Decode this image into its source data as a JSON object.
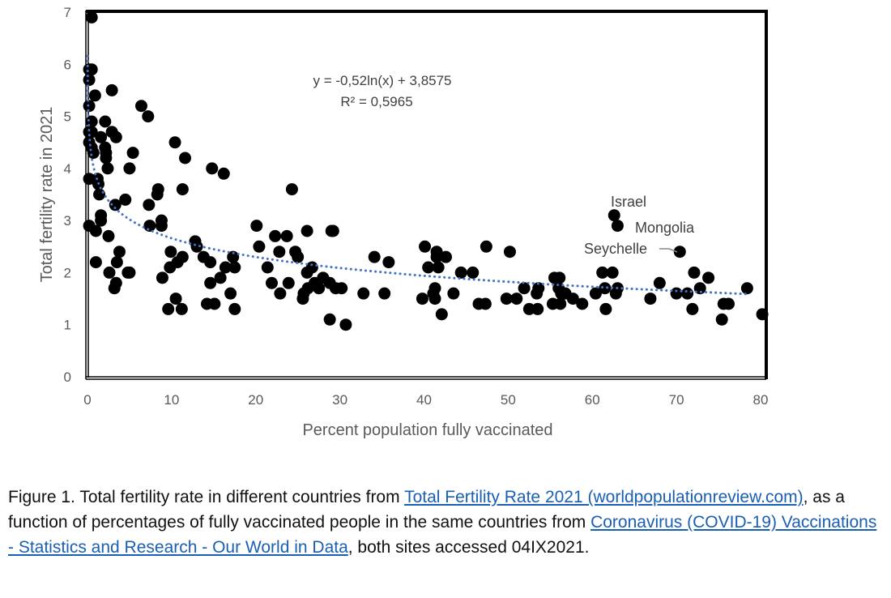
{
  "chart_data": {
    "type": "scatter",
    "title": "",
    "xlabel": "Percent population fully vaccinated",
    "ylabel": "Total fertility rate in 2021",
    "xlim": [
      0,
      80
    ],
    "ylim": [
      0,
      7
    ],
    "xticks": [
      0,
      10,
      20,
      30,
      40,
      50,
      60,
      70,
      80
    ],
    "yticks": [
      0,
      1,
      2,
      3,
      4,
      5,
      6,
      7
    ],
    "grid": false,
    "trendline": {
      "type": "logarithmic",
      "a": -0.52,
      "b": 3.8575,
      "equation": "y = -0,52ln(x) + 3,8575",
      "r2": "R² = 0,5965",
      "color": "#4472c4"
    },
    "marker_color": "#000000",
    "annotations": [
      {
        "label": "Israel",
        "x": 62.6,
        "y": 3.1
      },
      {
        "label": "Mongolia",
        "x": 63.0,
        "y": 2.9
      },
      {
        "label": "Seychelle",
        "x": 70.4,
        "y": 2.4
      }
    ],
    "points": [
      [
        0.5,
        6.9
      ],
      [
        0.2,
        5.9
      ],
      [
        0.5,
        5.9
      ],
      [
        0.2,
        5.7
      ],
      [
        2.9,
        5.5
      ],
      [
        0.9,
        5.4
      ],
      [
        0.2,
        5.2
      ],
      [
        6.4,
        5.2
      ],
      [
        7.2,
        5.0
      ],
      [
        0.5,
        4.9
      ],
      [
        2.1,
        4.9
      ],
      [
        0.2,
        4.7
      ],
      [
        0.5,
        4.7
      ],
      [
        2.9,
        4.7
      ],
      [
        3.4,
        4.6
      ],
      [
        1.6,
        4.6
      ],
      [
        0.2,
        4.5
      ],
      [
        0.5,
        4.4
      ],
      [
        2.1,
        4.4
      ],
      [
        2.2,
        4.3
      ],
      [
        0.7,
        4.3
      ],
      [
        2.2,
        4.2
      ],
      [
        5.4,
        4.3
      ],
      [
        5.0,
        4.0
      ],
      [
        2.4,
        4.0
      ],
      [
        10.4,
        4.5
      ],
      [
        11.6,
        4.2
      ],
      [
        14.8,
        4.0
      ],
      [
        16.2,
        3.9
      ],
      [
        0.2,
        3.8
      ],
      [
        1.2,
        3.8
      ],
      [
        1.3,
        3.7
      ],
      [
        1.4,
        3.5
      ],
      [
        8.4,
        3.6
      ],
      [
        11.3,
        3.6
      ],
      [
        8.3,
        3.5
      ],
      [
        24.3,
        3.6
      ],
      [
        4.5,
        3.4
      ],
      [
        7.3,
        3.3
      ],
      [
        3.3,
        3.3
      ],
      [
        1.6,
        3.1
      ],
      [
        1.6,
        3.0
      ],
      [
        0.2,
        2.9
      ],
      [
        1.0,
        2.8
      ],
      [
        2.5,
        2.7
      ],
      [
        7.4,
        2.9
      ],
      [
        8.8,
        3.0
      ],
      [
        8.8,
        2.9
      ],
      [
        20.1,
        2.9
      ],
      [
        29.0,
        2.8
      ],
      [
        29.2,
        2.8
      ],
      [
        26.1,
        2.8
      ],
      [
        3.8,
        2.4
      ],
      [
        3.5,
        2.2
      ],
      [
        1.0,
        2.2
      ],
      [
        2.6,
        2.0
      ],
      [
        3.4,
        1.8
      ],
      [
        3.2,
        1.7
      ],
      [
        4.8,
        2.0
      ],
      [
        5.0,
        2.0
      ],
      [
        12.8,
        2.6
      ],
      [
        13.0,
        2.5
      ],
      [
        9.9,
        2.4
      ],
      [
        11.3,
        2.3
      ],
      [
        10.7,
        2.2
      ],
      [
        13.8,
        2.3
      ],
      [
        14.6,
        2.2
      ],
      [
        16.4,
        2.1
      ],
      [
        9.8,
        2.1
      ],
      [
        8.9,
        1.9
      ],
      [
        14.6,
        1.8
      ],
      [
        15.8,
        1.9
      ],
      [
        17.0,
        1.6
      ],
      [
        17.5,
        2.1
      ],
      [
        17.3,
        2.3
      ],
      [
        9.6,
        1.3
      ],
      [
        10.5,
        1.5
      ],
      [
        11.2,
        1.3
      ],
      [
        14.2,
        1.4
      ],
      [
        15.1,
        1.4
      ],
      [
        17.5,
        1.3
      ],
      [
        20.4,
        2.5
      ],
      [
        22.3,
        2.7
      ],
      [
        23.7,
        2.7
      ],
      [
        22.8,
        2.4
      ],
      [
        24.7,
        2.4
      ],
      [
        25.0,
        2.3
      ],
      [
        21.4,
        2.1
      ],
      [
        21.9,
        1.8
      ],
      [
        22.9,
        1.6
      ],
      [
        23.9,
        1.8
      ],
      [
        26.7,
        2.1
      ],
      [
        26.1,
        2.0
      ],
      [
        28.0,
        1.9
      ],
      [
        27.0,
        1.8
      ],
      [
        28.8,
        1.8
      ],
      [
        25.7,
        1.6
      ],
      [
        25.6,
        1.5
      ],
      [
        26.2,
        1.7
      ],
      [
        27.5,
        1.7
      ],
      [
        29.5,
        1.7
      ],
      [
        30.2,
        1.7
      ],
      [
        28.8,
        1.1
      ],
      [
        30.7,
        1.0
      ],
      [
        32.8,
        1.6
      ],
      [
        35.3,
        1.6
      ],
      [
        34.1,
        2.3
      ],
      [
        35.8,
        2.2
      ],
      [
        40.1,
        2.5
      ],
      [
        41.5,
        2.4
      ],
      [
        41.5,
        2.3
      ],
      [
        42.6,
        2.3
      ],
      [
        40.5,
        2.1
      ],
      [
        41.7,
        2.1
      ],
      [
        44.4,
        2.0
      ],
      [
        45.8,
        2.0
      ],
      [
        47.4,
        2.5
      ],
      [
        50.2,
        2.4
      ],
      [
        41.3,
        1.7
      ],
      [
        41.1,
        1.6
      ],
      [
        41.3,
        1.5
      ],
      [
        39.8,
        1.5
      ],
      [
        43.5,
        1.6
      ],
      [
        42.1,
        1.2
      ],
      [
        46.5,
        1.4
      ],
      [
        47.3,
        1.4
      ],
      [
        49.8,
        1.5
      ],
      [
        51.0,
        1.5
      ],
      [
        51.9,
        1.7
      ],
      [
        52.5,
        1.3
      ],
      [
        53.5,
        1.3
      ],
      [
        53.6,
        1.7
      ],
      [
        53.4,
        1.6
      ],
      [
        55.5,
        1.9
      ],
      [
        56.1,
        1.9
      ],
      [
        56.0,
        1.7
      ],
      [
        56.3,
        1.6
      ],
      [
        56.8,
        1.6
      ],
      [
        55.3,
        1.4
      ],
      [
        56.2,
        1.4
      ],
      [
        57.7,
        1.5
      ],
      [
        58.8,
        1.4
      ],
      [
        60.4,
        1.6
      ],
      [
        61.2,
        2.0
      ],
      [
        62.4,
        2.0
      ],
      [
        61.5,
        1.7
      ],
      [
        63.0,
        1.7
      ],
      [
        62.8,
        1.6
      ],
      [
        61.6,
        1.3
      ],
      [
        62.6,
        3.1
      ],
      [
        63.0,
        2.9
      ],
      [
        70.4,
        2.4
      ],
      [
        66.9,
        1.5
      ],
      [
        68.0,
        1.8
      ],
      [
        70.0,
        1.6
      ],
      [
        71.3,
        1.6
      ],
      [
        72.1,
        2.0
      ],
      [
        72.8,
        1.7
      ],
      [
        73.8,
        1.9
      ],
      [
        71.9,
        1.3
      ],
      [
        75.6,
        1.4
      ],
      [
        76.2,
        1.4
      ],
      [
        75.4,
        1.1
      ],
      [
        78.4,
        1.7
      ],
      [
        80.2,
        1.2
      ]
    ]
  },
  "caption": {
    "prefix": "Figure 1. Total fertility rate in different countries from ",
    "link1": "Total Fertility Rate 2021 (worldpopulationreview.com)",
    "middle": ", as a function of percentages of fully vaccinated people in the same countries from ",
    "link2": "Coronavirus (COVID-19) Vaccinations - Statistics and Research - Our World in Data",
    "suffix": ", both sites accessed 04IX2021."
  }
}
